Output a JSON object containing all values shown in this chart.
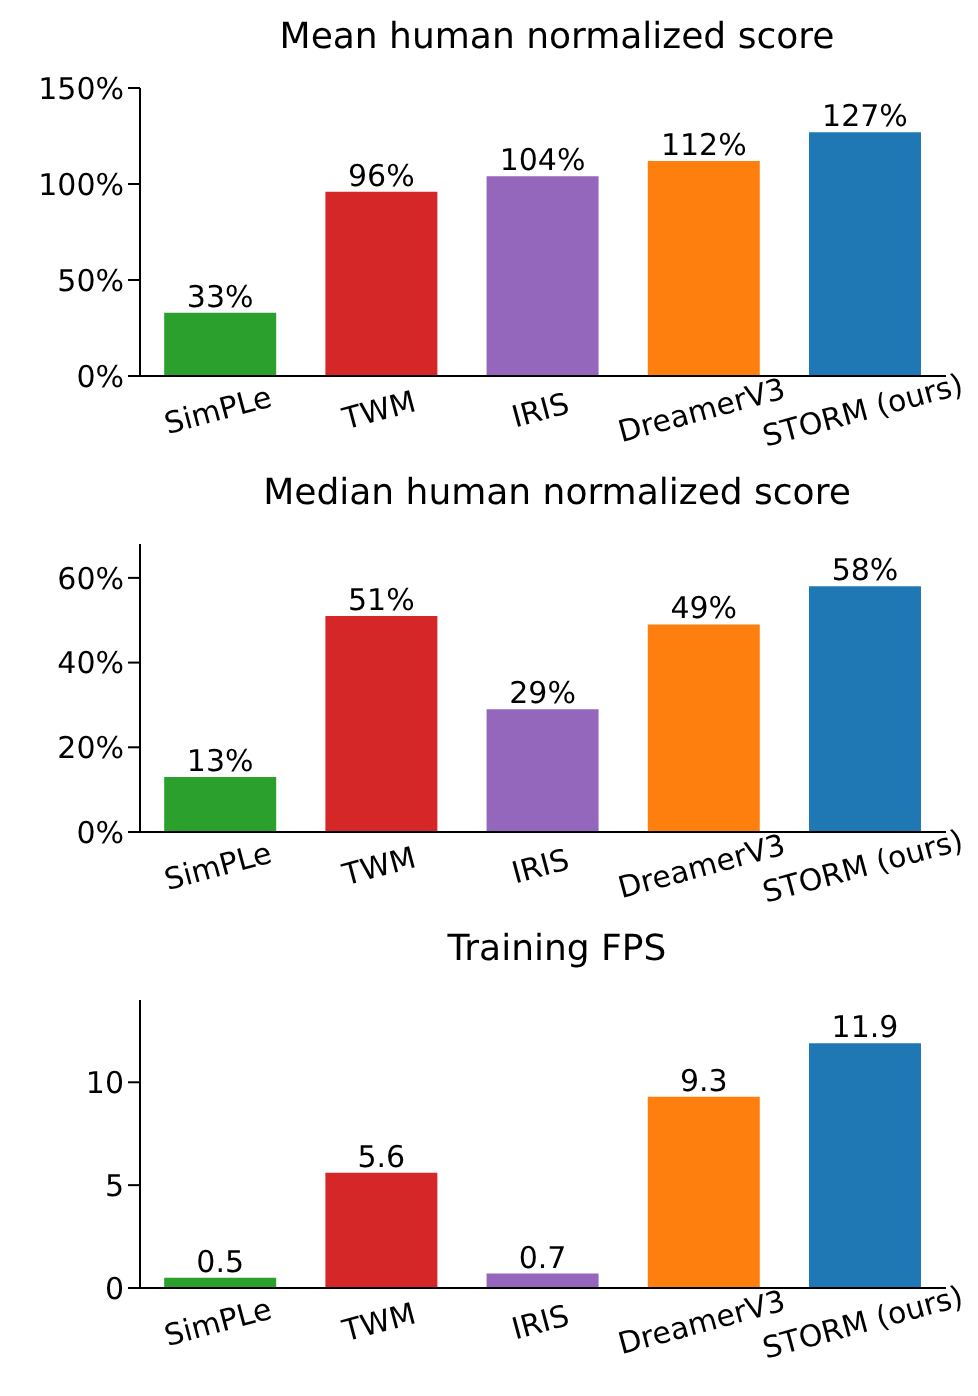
{
  "chart_data": [
    {
      "type": "bar",
      "title": "Mean human normalized score",
      "categories": [
        "SimPLe",
        "TWM",
        "IRIS",
        "DreamerV3",
        "STORM (ours)"
      ],
      "values": [
        33,
        96,
        104,
        112,
        127
      ],
      "colors": [
        "#2ca02c",
        "#d62728",
        "#9467bd",
        "#ff7f0e",
        "#1f77b4"
      ],
      "value_labels": [
        "33%",
        "96%",
        "104%",
        "112%",
        "127%"
      ],
      "ylim": [
        0,
        150
      ],
      "yticks": [
        {
          "value": 0,
          "label": "0%"
        },
        {
          "value": 50,
          "label": "50%"
        },
        {
          "value": 100,
          "label": "100%"
        },
        {
          "value": 150,
          "label": "150%"
        }
      ],
      "grid": false
    },
    {
      "type": "bar",
      "title": "Median human normalized score",
      "categories": [
        "SimPLe",
        "TWM",
        "IRIS",
        "DreamerV3",
        "STORM (ours)"
      ],
      "values": [
        13,
        51,
        29,
        49,
        58
      ],
      "colors": [
        "#2ca02c",
        "#d62728",
        "#9467bd",
        "#ff7f0e",
        "#1f77b4"
      ],
      "value_labels": [
        "13%",
        "51%",
        "29%",
        "49%",
        "58%"
      ],
      "ylim": [
        0,
        68
      ],
      "yticks": [
        {
          "value": 0,
          "label": "0%"
        },
        {
          "value": 20,
          "label": "20%"
        },
        {
          "value": 40,
          "label": "40%"
        },
        {
          "value": 60,
          "label": "60%"
        }
      ],
      "grid": false
    },
    {
      "type": "bar",
      "title": "Training FPS",
      "categories": [
        "SimPLe",
        "TWM",
        "IRIS",
        "DreamerV3",
        "STORM (ours)"
      ],
      "values": [
        0.5,
        5.6,
        0.7,
        9.3,
        11.9
      ],
      "colors": [
        "#2ca02c",
        "#d62728",
        "#9467bd",
        "#ff7f0e",
        "#1f77b4"
      ],
      "data_labels": true,
      "ylim": [
        0,
        14
      ],
      "yticks": [
        0,
        5,
        10
      ],
      "grid": false
    }
  ]
}
